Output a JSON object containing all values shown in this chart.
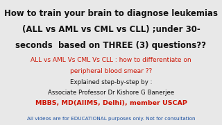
{
  "bg_color": "#e8e8e8",
  "line1": "How to train your brain to diagnose leukemias",
  "line2": "(ALL vs AML vs CML vs CLL) ;under 30-",
  "line3": "seconds  based on THREE (3) questions??",
  "line4": "ALL vs AML Vs CML Vs CLL : how to differentiate on",
  "line5": "peripheral blood smear ??",
  "line6": "Explained step-by-step by :",
  "line7": "Associate Professor Dr Kishore G Banerjee",
  "line8": "MBBS, MD(AIIMS, Delhi), member USCAP",
  "line9": "All videos are for EDUCATIONAL purposes only. Not for consultation",
  "color_black": "#111111",
  "color_red": "#cc1100",
  "color_blue": "#1a4fa0",
  "fs_title": 8.5,
  "fs_red": 6.5,
  "fs_black2": 6.2,
  "fs_cred": 6.8,
  "fs_disclaimer": 5.2
}
